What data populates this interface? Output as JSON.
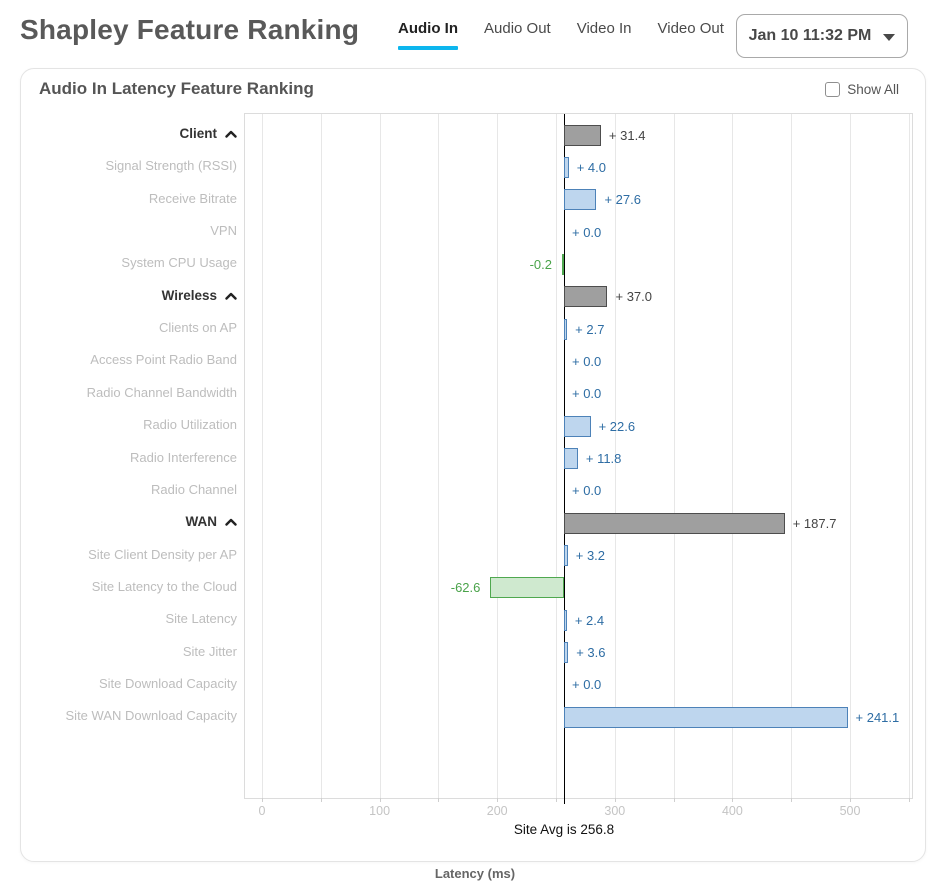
{
  "header": {
    "title": "Shapley Feature Ranking",
    "tabs": [
      {
        "label": "Audio In",
        "active": true
      },
      {
        "label": "Audio Out",
        "active": false
      },
      {
        "label": "Video In",
        "active": false
      },
      {
        "label": "Video Out",
        "active": false
      }
    ],
    "datepicker": {
      "label": "Jan 10 11:32 PM"
    }
  },
  "card": {
    "title": "Audio In Latency Feature Ranking",
    "show_all": {
      "label": "Show All",
      "checked": false
    }
  },
  "chart_data": {
    "type": "bar",
    "orientation": "horizontal",
    "title": "Audio In Latency Feature Ranking",
    "xlabel": "Latency (ms)",
    "x_axis": {
      "min": 0,
      "max": 550,
      "ticks": [
        0,
        100,
        200,
        300,
        400,
        500
      ],
      "grid_step": 50,
      "grid": true
    },
    "baseline": {
      "value": 256.8,
      "label": "Site Avg is 256.8"
    },
    "colors": {
      "group_fill": "#9f9f9f",
      "group_border": "#4d4d4d",
      "group_text": "#444444",
      "positive_fill": "#bed6ee",
      "positive_border": "#4d82b8",
      "positive_text": "#2e6da4",
      "negative_fill": "#cfe9cf",
      "negative_border": "#4fa84f",
      "negative_text": "#4aa34a",
      "baseline_color": "#000000",
      "tab_underline": "#0db6ee"
    },
    "rows": [
      {
        "label": "Client",
        "kind": "group",
        "value": 31.4,
        "display": "+ 31.4"
      },
      {
        "label": "Signal Strength (RSSI)",
        "kind": "feature",
        "value": 4.0,
        "display": "+ 4.0"
      },
      {
        "label": "Receive Bitrate",
        "kind": "feature",
        "value": 27.6,
        "display": "+ 27.6"
      },
      {
        "label": "VPN",
        "kind": "feature",
        "value": 0.0,
        "display": "+ 0.0"
      },
      {
        "label": "System CPU Usage",
        "kind": "feature",
        "value": -0.2,
        "display": "-0.2"
      },
      {
        "label": "Wireless",
        "kind": "group",
        "value": 37.0,
        "display": "+ 37.0"
      },
      {
        "label": "Clients on AP",
        "kind": "feature",
        "value": 2.7,
        "display": "+ 2.7"
      },
      {
        "label": "Access Point Radio Band",
        "kind": "feature",
        "value": 0.0,
        "display": "+ 0.0"
      },
      {
        "label": "Radio Channel Bandwidth",
        "kind": "feature",
        "value": 0.0,
        "display": "+ 0.0"
      },
      {
        "label": "Radio Utilization",
        "kind": "feature",
        "value": 22.6,
        "display": "+ 22.6"
      },
      {
        "label": "Radio Interference",
        "kind": "feature",
        "value": 11.8,
        "display": "+ 11.8"
      },
      {
        "label": "Radio Channel",
        "kind": "feature",
        "value": 0.0,
        "display": "+ 0.0"
      },
      {
        "label": "WAN",
        "kind": "group",
        "value": 187.7,
        "display": "+ 187.7"
      },
      {
        "label": "Site Client Density per AP",
        "kind": "feature",
        "value": 3.2,
        "display": "+ 3.2"
      },
      {
        "label": "Site Latency to the Cloud",
        "kind": "feature",
        "value": -62.6,
        "display": "-62.6"
      },
      {
        "label": "Site Latency",
        "kind": "feature",
        "value": 2.4,
        "display": "+ 2.4"
      },
      {
        "label": "Site Jitter",
        "kind": "feature",
        "value": 3.6,
        "display": "+ 3.6"
      },
      {
        "label": "Site Download Capacity",
        "kind": "feature",
        "value": 0.0,
        "display": "+ 0.0"
      },
      {
        "label": "Site WAN Download Capacity",
        "kind": "feature",
        "value": 241.1,
        "display": "+ 241.1"
      }
    ]
  }
}
